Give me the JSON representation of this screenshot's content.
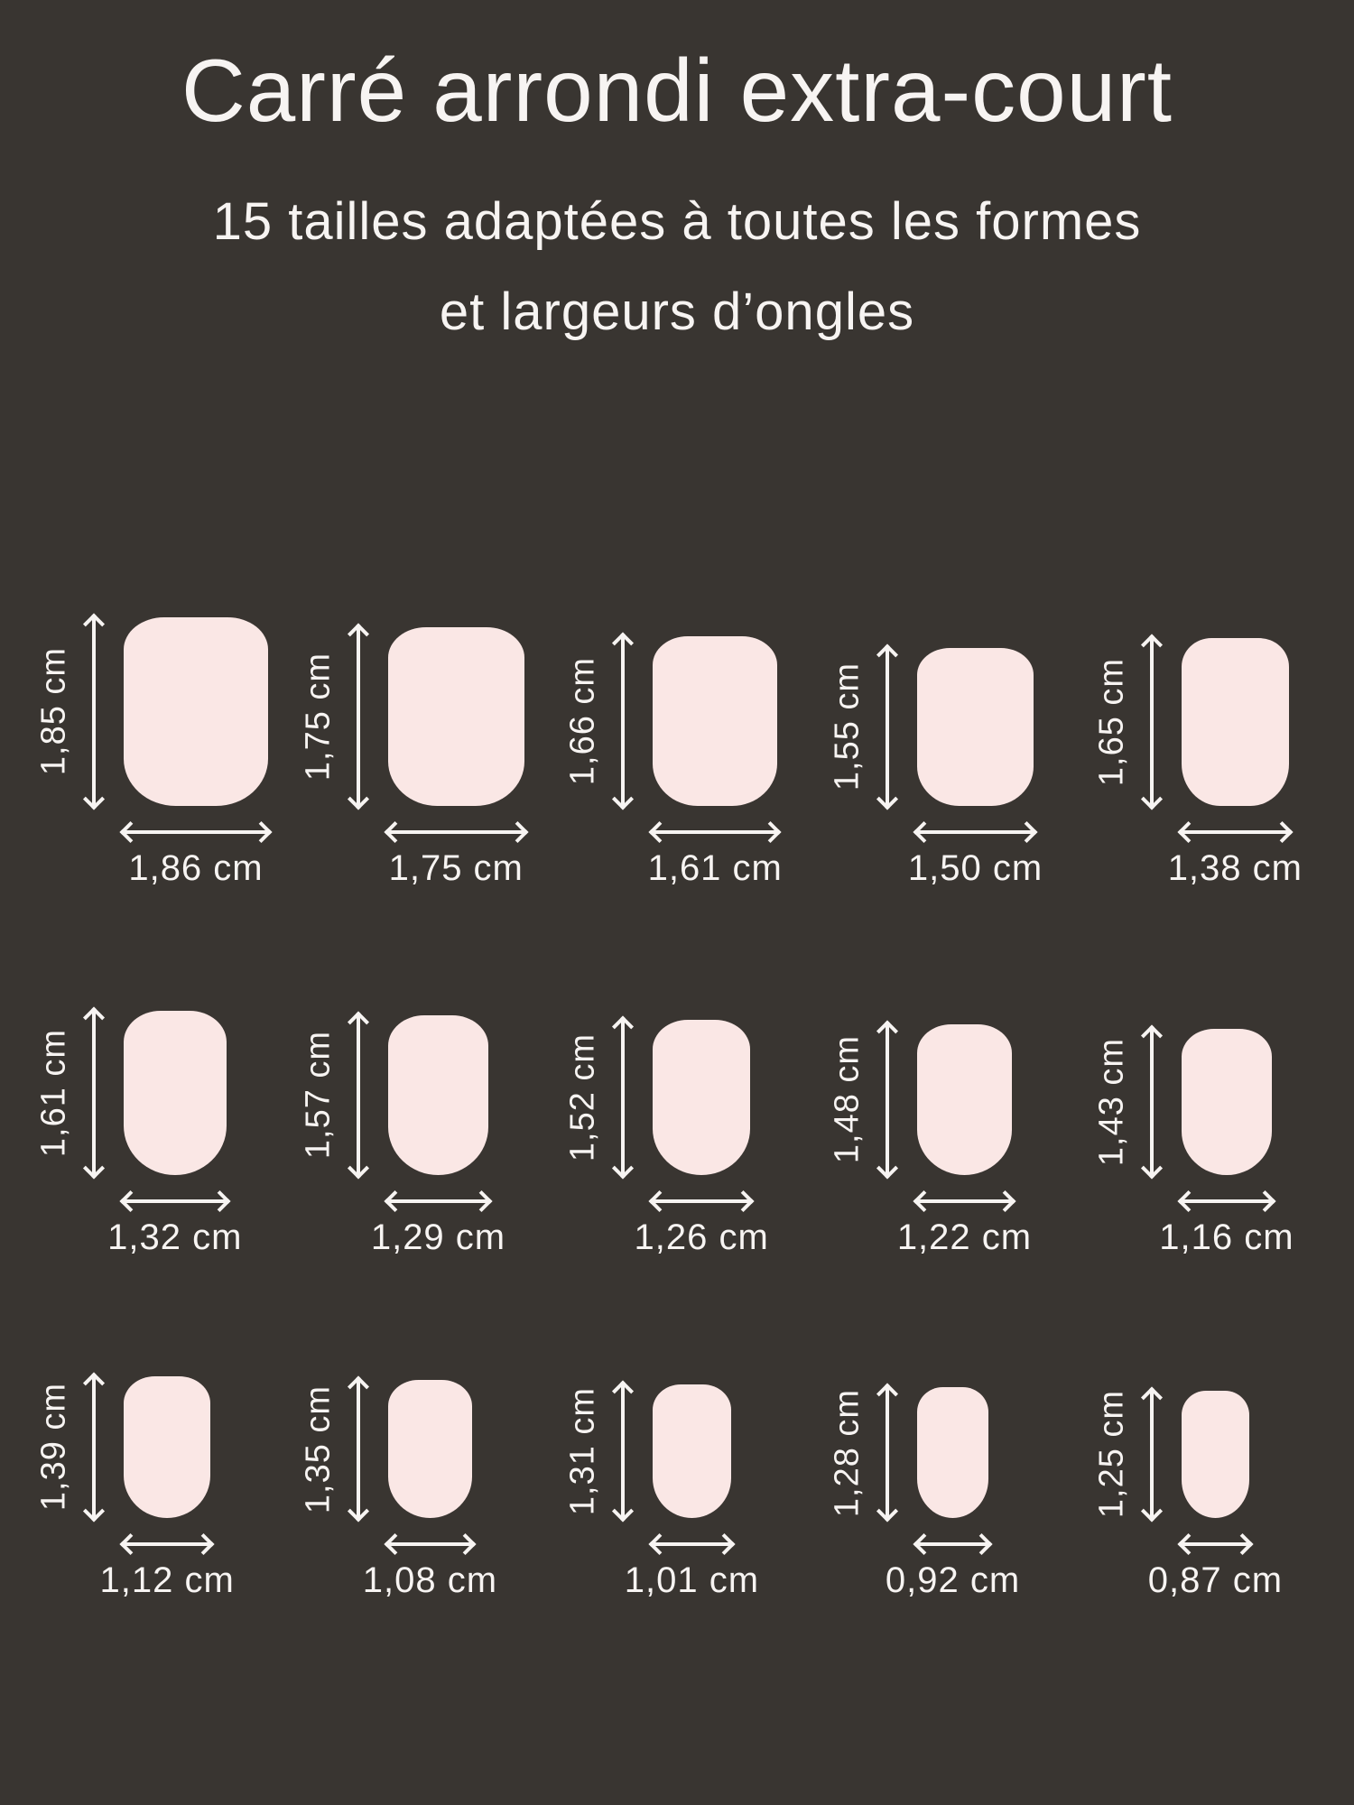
{
  "page": {
    "title": "Carré arrondi extra-court",
    "subtitle_line1": "15 tailles adaptées à toutes les formes",
    "subtitle_line2": "et largeurs d’ongles"
  },
  "colors": {
    "background": "#393531",
    "nail": "#fae7e5",
    "text": "#f7f4f2"
  },
  "unit": "cm",
  "sizes": {
    "rows": [
      [
        {
          "height_label": "1,85 cm",
          "width_label": "1,86 cm",
          "height_cm": 1.85,
          "width_cm": 1.86
        },
        {
          "height_label": "1,75 cm",
          "width_label": "1,75 cm",
          "height_cm": 1.75,
          "width_cm": 1.75
        },
        {
          "height_label": "1,66 cm",
          "width_label": "1,61 cm",
          "height_cm": 1.66,
          "width_cm": 1.61
        },
        {
          "height_label": "1,55 cm",
          "width_label": "1,50 cm",
          "height_cm": 1.55,
          "width_cm": 1.5
        },
        {
          "height_label": "1,65 cm",
          "width_label": "1,38 cm",
          "height_cm": 1.65,
          "width_cm": 1.38
        }
      ],
      [
        {
          "height_label": "1,61 cm",
          "width_label": "1,32 cm",
          "height_cm": 1.61,
          "width_cm": 1.32
        },
        {
          "height_label": "1,57 cm",
          "width_label": "1,29 cm",
          "height_cm": 1.57,
          "width_cm": 1.29
        },
        {
          "height_label": "1,52 cm",
          "width_label": "1,26 cm",
          "height_cm": 1.52,
          "width_cm": 1.26
        },
        {
          "height_label": "1,48 cm",
          "width_label": "1,22 cm",
          "height_cm": 1.48,
          "width_cm": 1.22
        },
        {
          "height_label": "1,43 cm",
          "width_label": "1,16 cm",
          "height_cm": 1.43,
          "width_cm": 1.16
        }
      ],
      [
        {
          "height_label": "1,39 cm",
          "width_label": "1,12 cm",
          "height_cm": 1.39,
          "width_cm": 1.12
        },
        {
          "height_label": "1,35 cm",
          "width_label": "1,08 cm",
          "height_cm": 1.35,
          "width_cm": 1.08
        },
        {
          "height_label": "1,31 cm",
          "width_label": "1,01 cm",
          "height_cm": 1.31,
          "width_cm": 1.01
        },
        {
          "height_label": "1,28 cm",
          "width_label": "0,92 cm",
          "height_cm": 1.28,
          "width_cm": 0.92
        },
        {
          "height_label": "1,25 cm",
          "width_label": "0,87 cm",
          "height_cm": 1.25,
          "width_cm": 0.87
        }
      ]
    ]
  }
}
